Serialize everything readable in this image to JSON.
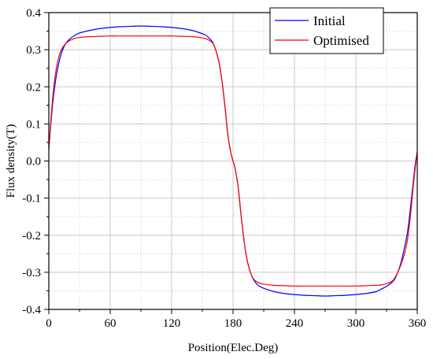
{
  "chart_data": {
    "type": "line",
    "xlabel": "Position(Elec.Deg)",
    "ylabel": "Flux density(T)",
    "xlim": [
      0,
      360
    ],
    "ylim": [
      -0.4,
      0.4
    ],
    "x_ticks": [
      0,
      60,
      120,
      180,
      240,
      300,
      360
    ],
    "x_tick_labels": [
      "0",
      "60",
      "120",
      "180",
      "240",
      "300",
      "360"
    ],
    "y_ticks": [
      -0.4,
      -0.3,
      -0.2,
      -0.1,
      0.0,
      0.1,
      0.2,
      0.3,
      0.4
    ],
    "y_tick_labels": [
      "-0.4",
      "-0.3",
      "-0.2",
      "-0.1",
      "0.0",
      "0.1",
      "0.2",
      "0.3",
      "0.4"
    ],
    "grid": true,
    "legend_position": "top-right",
    "x": [
      0,
      2,
      4,
      6,
      8,
      10,
      12,
      14,
      16,
      18,
      20,
      25,
      30,
      40,
      50,
      60,
      70,
      80,
      90,
      100,
      110,
      120,
      130,
      140,
      145,
      150,
      155,
      160,
      163,
      166,
      169,
      172,
      175,
      178,
      180,
      182,
      185,
      188,
      191,
      194,
      197,
      200,
      205,
      210,
      220,
      230,
      240,
      250,
      260,
      270,
      280,
      290,
      300,
      310,
      320,
      325,
      330,
      335,
      338,
      341,
      344,
      347,
      350,
      352,
      354,
      356,
      358,
      360
    ],
    "series": [
      {
        "name": "Initial",
        "color": "#0000ff",
        "values": [
          0.03,
          0.1,
          0.16,
          0.205,
          0.24,
          0.267,
          0.288,
          0.303,
          0.314,
          0.322,
          0.328,
          0.338,
          0.345,
          0.352,
          0.357,
          0.36,
          0.362,
          0.363,
          0.364,
          0.363,
          0.362,
          0.36,
          0.357,
          0.352,
          0.348,
          0.343,
          0.336,
          0.32,
          0.3,
          0.27,
          0.22,
          0.15,
          0.07,
          0.02,
          0.0,
          -0.02,
          -0.07,
          -0.15,
          -0.22,
          -0.27,
          -0.3,
          -0.32,
          -0.336,
          -0.343,
          -0.352,
          -0.357,
          -0.36,
          -0.362,
          -0.363,
          -0.364,
          -0.363,
          -0.362,
          -0.36,
          -0.357,
          -0.352,
          -0.345,
          -0.338,
          -0.328,
          -0.318,
          -0.3,
          -0.275,
          -0.24,
          -0.2,
          -0.16,
          -0.11,
          -0.06,
          -0.01,
          0.025
        ]
      },
      {
        "name": "Optimised",
        "color": "#ff0000",
        "values": [
          0.03,
          0.11,
          0.175,
          0.225,
          0.26,
          0.283,
          0.298,
          0.308,
          0.315,
          0.32,
          0.324,
          0.33,
          0.333,
          0.335,
          0.336,
          0.337,
          0.337,
          0.337,
          0.337,
          0.337,
          0.337,
          0.337,
          0.336,
          0.335,
          0.334,
          0.332,
          0.328,
          0.318,
          0.3,
          0.27,
          0.22,
          0.15,
          0.07,
          0.02,
          0.0,
          -0.02,
          -0.07,
          -0.15,
          -0.22,
          -0.27,
          -0.3,
          -0.318,
          -0.328,
          -0.332,
          -0.335,
          -0.336,
          -0.337,
          -0.337,
          -0.337,
          -0.337,
          -0.337,
          -0.337,
          -0.337,
          -0.336,
          -0.335,
          -0.334,
          -0.331,
          -0.325,
          -0.315,
          -0.3,
          -0.28,
          -0.255,
          -0.22,
          -0.18,
          -0.13,
          -0.07,
          -0.02,
          0.025
        ]
      }
    ]
  }
}
